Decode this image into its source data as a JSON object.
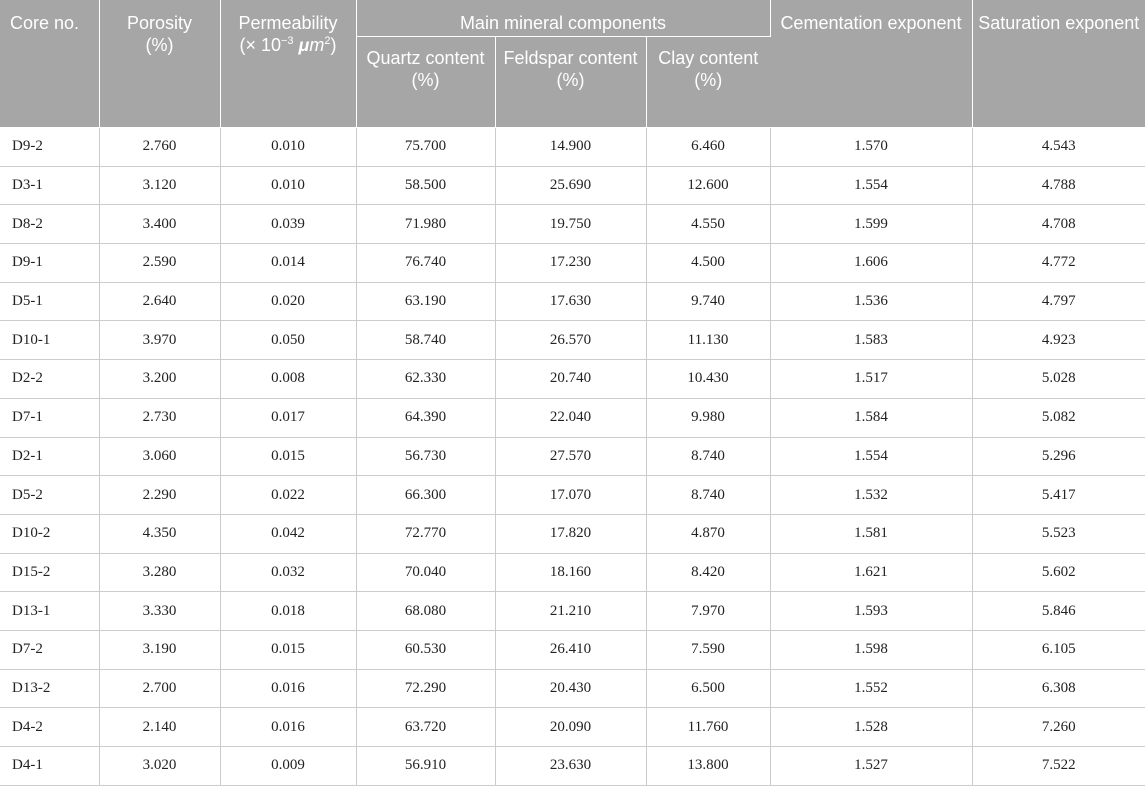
{
  "headers": {
    "core_no": "Core no.",
    "porosity": "Porosity",
    "porosity_unit": "(%)",
    "permeability": "Permeability",
    "perm_unit_prefix": "(× 10",
    "perm_unit_exp": "−3",
    "perm_unit_mu": "μ",
    "perm_unit_m": "m",
    "perm_unit_exp2": "2",
    "perm_unit_close": ")",
    "main_mineral": "Main mineral components",
    "quartz": "Quartz content",
    "feldspar": "Feldspar content",
    "clay": "Clay content",
    "pct": "(%)",
    "cementation": "Cementation exponent",
    "saturation": "Saturation exponent"
  },
  "rows": [
    [
      "D9-2",
      "2.760",
      "0.010",
      "75.700",
      "14.900",
      "6.460",
      "1.570",
      "4.543"
    ],
    [
      "D3-1",
      "3.120",
      "0.010",
      "58.500",
      "25.690",
      "12.600",
      "1.554",
      "4.788"
    ],
    [
      "D8-2",
      "3.400",
      "0.039",
      "71.980",
      "19.750",
      "4.550",
      "1.599",
      "4.708"
    ],
    [
      "D9-1",
      "2.590",
      "0.014",
      "76.740",
      "17.230",
      "4.500",
      "1.606",
      "4.772"
    ],
    [
      "D5-1",
      "2.640",
      "0.020",
      "63.190",
      "17.630",
      "9.740",
      "1.536",
      "4.797"
    ],
    [
      "D10-1",
      "3.970",
      "0.050",
      "58.740",
      "26.570",
      "11.130",
      "1.583",
      "4.923"
    ],
    [
      "D2-2",
      "3.200",
      "0.008",
      "62.330",
      "20.740",
      "10.430",
      "1.517",
      "5.028"
    ],
    [
      "D7-1",
      "2.730",
      "0.017",
      "64.390",
      "22.040",
      "9.980",
      "1.584",
      "5.082"
    ],
    [
      "D2-1",
      "3.060",
      "0.015",
      "56.730",
      "27.570",
      "8.740",
      "1.554",
      "5.296"
    ],
    [
      "D5-2",
      "2.290",
      "0.022",
      "66.300",
      "17.070",
      "8.740",
      "1.532",
      "5.417"
    ],
    [
      "D10-2",
      "4.350",
      "0.042",
      "72.770",
      "17.820",
      "4.870",
      "1.581",
      "5.523"
    ],
    [
      "D15-2",
      "3.280",
      "0.032",
      "70.040",
      "18.160",
      "8.420",
      "1.621",
      "5.602"
    ],
    [
      "D13-1",
      "3.330",
      "0.018",
      "68.080",
      "21.210",
      "7.970",
      "1.593",
      "5.846"
    ],
    [
      "D7-2",
      "3.190",
      "0.015",
      "60.530",
      "26.410",
      "7.590",
      "1.598",
      "6.105"
    ],
    [
      "D13-2",
      "2.700",
      "0.016",
      "72.290",
      "20.430",
      "6.500",
      "1.552",
      "6.308"
    ],
    [
      "D4-2",
      "2.140",
      "0.016",
      "63.720",
      "20.090",
      "11.760",
      "1.528",
      "7.260"
    ],
    [
      "D4-1",
      "3.020",
      "0.009",
      "56.910",
      "23.630",
      "13.800",
      "1.527",
      "7.522"
    ]
  ]
}
